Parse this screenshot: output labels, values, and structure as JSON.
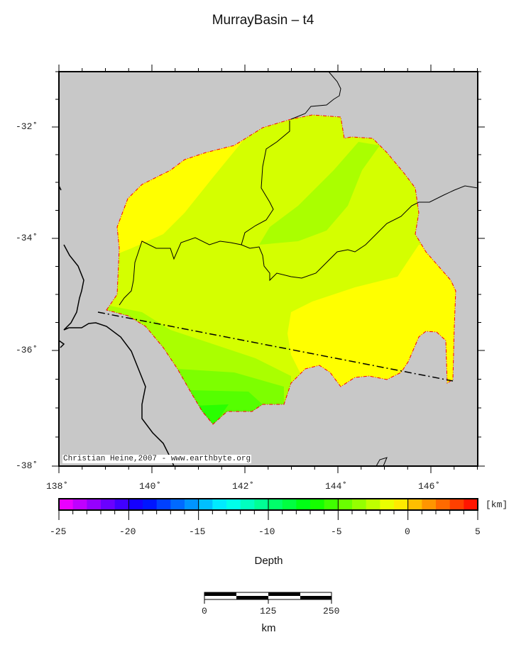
{
  "title": "MurrayBasin – t4",
  "credit": "Christian Heine,2007 - www.earthbyte.org",
  "map": {
    "lon_range": [
      138,
      147
    ],
    "lat_range": [
      -38,
      -31
    ],
    "lon_labels": [
      "138˚",
      "140˚",
      "142˚",
      "144˚",
      "146˚"
    ],
    "lat_labels": [
      "-32˚",
      "-34˚",
      "-36˚",
      "-38˚"
    ],
    "land_color": "#c8c8c8",
    "outline_color": "#ff0000"
  },
  "colorbar": {
    "min": -25,
    "max": 5,
    "step": 1,
    "tick_labels": [
      "-25",
      "-20",
      "-15",
      "-10",
      "-5",
      "0",
      "5"
    ],
    "unit": "[km]",
    "label": "Depth"
  },
  "scalebar": {
    "labels": [
      "0",
      "125",
      "250"
    ],
    "unit": "km"
  }
}
